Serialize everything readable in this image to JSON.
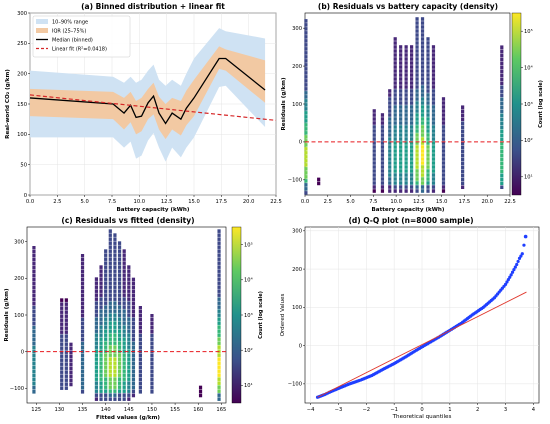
{
  "colors": {
    "band_outer": "#cfe2f3",
    "band_iqr": "#f2c9a3",
    "median": "#000000",
    "fit": "#d62728",
    "qq_points": "#1f3fff",
    "qq_line": "#e0372c"
  },
  "chart_data": [
    {
      "id": "a",
      "type": "line",
      "title": "(a) Binned distribution + linear fit",
      "xlabel": "Battery capacity (kWh)",
      "ylabel": "Real-world CO₂ (g/km)",
      "xlim": [
        0,
        22.5
      ],
      "ylim": [
        0,
        300
      ],
      "xticks": [
        "0.0",
        "2.5",
        "5.0",
        "7.5",
        "10.0",
        "12.5",
        "15.0",
        "17.5",
        "20.0",
        "22.5"
      ],
      "yticks": [
        "0",
        "50",
        "100",
        "150",
        "200",
        "250",
        "300"
      ],
      "grid": true,
      "legend_position": "top-left",
      "legend": [
        "10–90% range",
        "IQR (25–75%)",
        "Median (binned)",
        "Linear fit (R²=0.0418)"
      ],
      "x": [
        0,
        7.6,
        8.6,
        9.2,
        9.7,
        10.2,
        10.8,
        11.3,
        11.8,
        12.4,
        13.0,
        13.8,
        14.3,
        15.0,
        17.3,
        17.9,
        21.5
      ],
      "median": [
        160,
        150,
        135,
        148,
        128,
        130,
        152,
        163,
        135,
        118,
        135,
        125,
        143,
        160,
        225,
        225,
        173
      ],
      "p10": [
        95,
        95,
        78,
        88,
        60,
        65,
        90,
        102,
        78,
        55,
        78,
        62,
        78,
        95,
        178,
        180,
        112
      ],
      "p25": [
        130,
        125,
        108,
        120,
        100,
        105,
        125,
        133,
        108,
        92,
        108,
        98,
        115,
        130,
        208,
        205,
        152
      ],
      "p75": [
        175,
        170,
        160,
        170,
        155,
        160,
        175,
        185,
        162,
        150,
        160,
        155,
        172,
        190,
        245,
        240,
        222
      ],
      "p90": [
        205,
        195,
        185,
        195,
        185,
        190,
        205,
        215,
        190,
        180,
        190,
        180,
        200,
        225,
        275,
        270,
        258
      ],
      "fit": {
        "x": [
          0,
          22.5
        ],
        "y": [
          165,
          123
        ]
      }
    },
    {
      "id": "b",
      "type": "heatmap",
      "title": "(b) Residuals vs battery capacity (density)",
      "xlabel": "Battery capacity (kWh)",
      "ylabel": "Residuals (g/km)",
      "colorbar_label": "Count (log scale)",
      "xlim": [
        0,
        22.5
      ],
      "ylim": [
        -140,
        340
      ],
      "xticks": [
        "0.0",
        "2.5",
        "5.0",
        "7.5",
        "10.0",
        "12.5",
        "15.0",
        "17.5",
        "20.0",
        "22.5"
      ],
      "yticks": [
        "−100",
        "0",
        "100",
        "200",
        "300"
      ],
      "cbar_ticks": [
        "10¹",
        "10²",
        "10³",
        "10⁴",
        "10⁵"
      ],
      "zero_line": 0,
      "columns": [
        {
          "x": 0.1,
          "lo": -135,
          "hi": 320,
          "hot": 0.9
        },
        {
          "x": 1.5,
          "lo": -110,
          "hi": -90,
          "hot": 0.1
        },
        {
          "x": 7.6,
          "lo": -130,
          "hi": 90,
          "hot": 0.3
        },
        {
          "x": 8.5,
          "lo": -130,
          "hi": 80,
          "hot": 0.3
        },
        {
          "x": 9.3,
          "lo": -130,
          "hi": 140,
          "hot": 0.5
        },
        {
          "x": 9.9,
          "lo": -130,
          "hi": 280,
          "hot": 0.6
        },
        {
          "x": 10.5,
          "lo": -130,
          "hi": 260,
          "hot": 0.6
        },
        {
          "x": 11.1,
          "lo": -130,
          "hi": 260,
          "hot": 0.6
        },
        {
          "x": 11.7,
          "lo": -130,
          "hi": 250,
          "hot": 0.6
        },
        {
          "x": 12.3,
          "lo": -130,
          "hi": 330,
          "hot": 0.9
        },
        {
          "x": 12.9,
          "lo": -130,
          "hi": 330,
          "hot": 1.0
        },
        {
          "x": 13.5,
          "lo": -130,
          "hi": 280,
          "hot": 0.8
        },
        {
          "x": 14.1,
          "lo": -130,
          "hi": 250,
          "hot": 0.6
        },
        {
          "x": 15.2,
          "lo": -130,
          "hi": 120,
          "hot": 0.3
        },
        {
          "x": 17.3,
          "lo": -120,
          "hi": 100,
          "hot": 0.3
        },
        {
          "x": 21.6,
          "lo": -120,
          "hi": 250,
          "hot": 0.7
        }
      ]
    },
    {
      "id": "c",
      "type": "heatmap",
      "title": "(c) Residuals vs fitted (density)",
      "xlabel": "Fitted values (g/km)",
      "ylabel": "Residuals (g/km)",
      "colorbar_label": "Count (log scale)",
      "xlim": [
        123,
        166
      ],
      "ylim": [
        -140,
        340
      ],
      "xticks": [
        "125",
        "130",
        "135",
        "140",
        "145",
        "150",
        "155",
        "160",
        "165"
      ],
      "yticks": [
        "−100",
        "0",
        "100",
        "200",
        "300"
      ],
      "cbar_ticks": [
        "10¹",
        "10²",
        "10³",
        "10⁴",
        "10⁵"
      ],
      "zero_line": 0,
      "columns": [
        {
          "x": 124.5,
          "lo": -110,
          "hi": 290,
          "hot": 0.5
        },
        {
          "x": 130.5,
          "lo": -100,
          "hi": 150,
          "hot": 0.3
        },
        {
          "x": 131.5,
          "lo": -100,
          "hi": 150,
          "hot": 0.3
        },
        {
          "x": 132.5,
          "lo": -90,
          "hi": 20,
          "hot": 0.2
        },
        {
          "x": 135,
          "lo": -110,
          "hi": 270,
          "hot": 0.4
        },
        {
          "x": 138,
          "lo": -130,
          "hi": 200,
          "hot": 0.6
        },
        {
          "x": 139,
          "lo": -130,
          "hi": 230,
          "hot": 0.7
        },
        {
          "x": 140,
          "lo": -130,
          "hi": 280,
          "hot": 0.8
        },
        {
          "x": 141,
          "lo": -130,
          "hi": 330,
          "hot": 0.9
        },
        {
          "x": 142,
          "lo": -130,
          "hi": 320,
          "hot": 0.9
        },
        {
          "x": 143,
          "lo": -130,
          "hi": 300,
          "hot": 0.8
        },
        {
          "x": 144,
          "lo": -130,
          "hi": 280,
          "hot": 0.7
        },
        {
          "x": 145,
          "lo": -130,
          "hi": 240,
          "hot": 0.6
        },
        {
          "x": 146,
          "lo": -120,
          "hi": 200,
          "hot": 0.4
        },
        {
          "x": 147.5,
          "lo": -110,
          "hi": 120,
          "hot": 0.3
        },
        {
          "x": 150,
          "lo": -110,
          "hi": 100,
          "hot": 0.3
        },
        {
          "x": 160.5,
          "lo": -120,
          "hi": -90,
          "hot": 0.1
        },
        {
          "x": 164.5,
          "lo": -130,
          "hi": 330,
          "hot": 1.0
        }
      ]
    },
    {
      "id": "d",
      "type": "scatter",
      "title": "(d) Q-Q plot (n=8000 sample)",
      "xlabel": "Theoretical quantiles",
      "ylabel": "Ordered Values",
      "xlim": [
        -4.2,
        4.2
      ],
      "ylim": [
        -150,
        310
      ],
      "xticks": [
        "−4",
        "−3",
        "−2",
        "−1",
        "0",
        "1",
        "2",
        "3",
        "4"
      ],
      "yticks": [
        "−100",
        "0",
        "100",
        "200",
        "300"
      ],
      "grid": true,
      "ref_line": {
        "x": [
          -3.75,
          3.75
        ],
        "y": [
          -135,
          140
        ]
      },
      "points": [
        [
          -3.75,
          -135
        ],
        [
          -3.5,
          -128
        ],
        [
          -3.2,
          -118
        ],
        [
          -3.0,
          -112
        ],
        [
          -2.6,
          -100
        ],
        [
          -2.2,
          -90
        ],
        [
          -1.8,
          -78
        ],
        [
          -1.4,
          -62
        ],
        [
          -1.0,
          -47
        ],
        [
          -0.6,
          -30
        ],
        [
          -0.2,
          -12
        ],
        [
          0.2,
          5
        ],
        [
          0.6,
          22
        ],
        [
          1.0,
          40
        ],
        [
          1.4,
          58
        ],
        [
          1.8,
          80
        ],
        [
          2.2,
          100
        ],
        [
          2.6,
          125
        ],
        [
          3.0,
          160
        ],
        [
          3.2,
          185
        ],
        [
          3.4,
          212
        ],
        [
          3.5,
          228
        ],
        [
          3.6,
          240
        ],
        [
          3.72,
          285
        ]
      ]
    }
  ]
}
